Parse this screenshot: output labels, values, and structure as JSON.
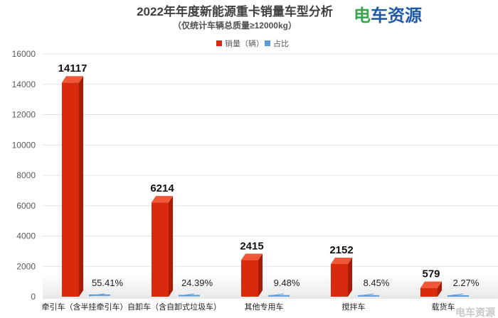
{
  "brand": {
    "logo_text": "电车资源",
    "watermark_text": "电车资源"
  },
  "colors": {
    "bar_front": "#d92a0e",
    "bar_top": "#f05638",
    "bar_side": "#a81c06",
    "pct_line": "#5b9bd5",
    "brand_green": "#3aa44a",
    "brand_blue": "#1e5aa8"
  },
  "chart_data": {
    "type": "bar",
    "title": "2022年年度新能源重卡销量车型分析",
    "subtitle": "（仅统计车辆总质量≥12000kg）",
    "legend_position": "top",
    "grid": true,
    "ylim": [
      0,
      16000
    ],
    "yticks": [
      0,
      2000,
      4000,
      6000,
      8000,
      10000,
      12000,
      14000,
      16000
    ],
    "categories": [
      "牵引车（含半挂牵引车）",
      "自卸车（含自卸式垃圾车）",
      "其他专用车",
      "搅拌车",
      "载货车"
    ],
    "series": [
      {
        "name": "销量（辆）",
        "values": [
          14117,
          6214,
          2415,
          2152,
          579
        ],
        "labels": [
          "14117",
          "6214",
          "2415",
          "2152",
          "579"
        ]
      },
      {
        "name": "占比",
        "values": [
          55.41,
          24.39,
          9.48,
          8.45,
          2.27
        ],
        "labels": [
          "55.41%",
          "24.39%",
          "9.48%",
          "8.45%",
          "2.27%"
        ]
      }
    ]
  }
}
